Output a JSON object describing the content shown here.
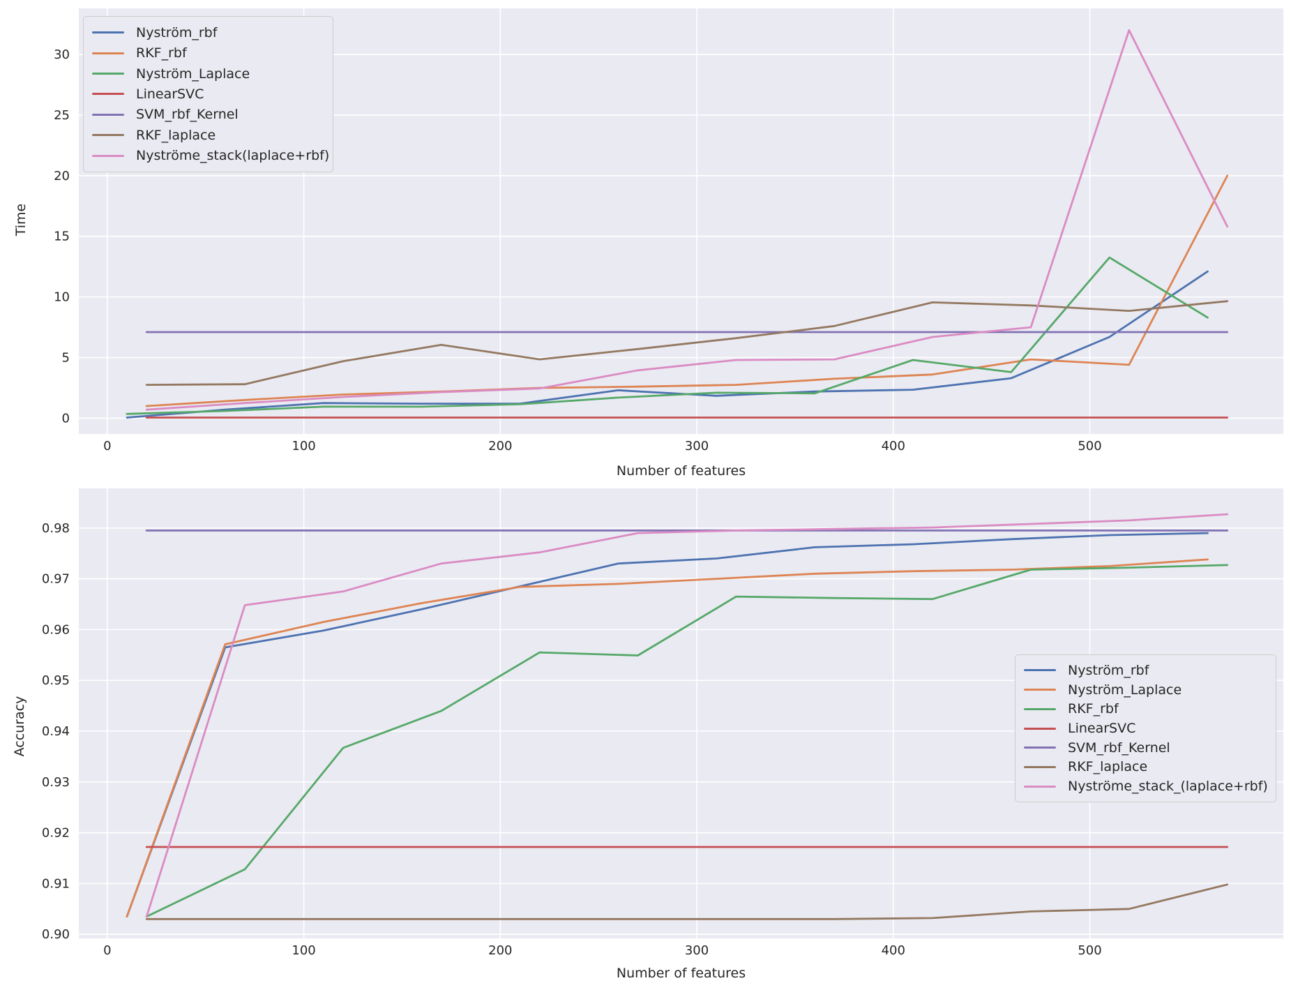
{
  "figure": {
    "background": "#ffffff",
    "axes_background": "#eaeaf2",
    "grid_color": "#ffffff",
    "text_color": "#262626"
  },
  "chart_data": [
    {
      "type": "line",
      "title": "",
      "xlabel": "Number of features",
      "ylabel": "Time",
      "xlim": [
        -14.5,
        598.5
      ],
      "ylim": [
        -1.3,
        33.8
      ],
      "grid": true,
      "legend_position": "upper left",
      "xticks": {
        "values": [
          0,
          100,
          200,
          300,
          400,
          500
        ],
        "labels": [
          "0",
          "100",
          "200",
          "300",
          "400",
          "500"
        ]
      },
      "yticks": {
        "values": [
          0,
          5,
          10,
          15,
          20,
          25,
          30
        ],
        "labels": [
          "0",
          "5",
          "10",
          "15",
          "20",
          "25",
          "30"
        ]
      },
      "series": [
        {
          "name": "Nyström_rbf",
          "color": "#4C72B0",
          "x": [
            10,
            60,
            110,
            160,
            210,
            260,
            310,
            360,
            410,
            460,
            510,
            560
          ],
          "y": [
            0.05,
            0.7,
            1.25,
            1.2,
            1.2,
            2.3,
            1.85,
            2.2,
            2.35,
            3.3,
            6.7,
            12.1
          ]
        },
        {
          "name": "RKF_rbf",
          "color": "#DD8452",
          "x": [
            20,
            70,
            120,
            170,
            220,
            270,
            320,
            370,
            420,
            470,
            520,
            570
          ],
          "y": [
            1.0,
            1.5,
            1.95,
            2.2,
            2.5,
            2.6,
            2.75,
            3.25,
            3.6,
            4.85,
            4.4,
            20.0
          ]
        },
        {
          "name": "Nyström_Laplace",
          "color": "#55A868",
          "x": [
            10,
            60,
            110,
            160,
            210,
            260,
            310,
            360,
            410,
            460,
            510,
            560
          ],
          "y": [
            0.35,
            0.6,
            0.95,
            0.95,
            1.15,
            1.7,
            2.1,
            2.05,
            4.8,
            3.8,
            13.25,
            8.3
          ]
        },
        {
          "name": "LinearSVC",
          "color": "#C44E52",
          "x": [
            20,
            70,
            120,
            170,
            220,
            270,
            320,
            370,
            420,
            470,
            520,
            570
          ],
          "y": [
            0.05,
            0.05,
            0.05,
            0.05,
            0.05,
            0.05,
            0.05,
            0.05,
            0.05,
            0.05,
            0.05,
            0.05
          ]
        },
        {
          "name": "SVM_rbf_Kernel",
          "color": "#8172B3",
          "x": [
            20,
            70,
            120,
            170,
            220,
            270,
            320,
            370,
            420,
            470,
            520,
            570
          ],
          "y": [
            7.1,
            7.1,
            7.1,
            7.1,
            7.1,
            7.1,
            7.1,
            7.1,
            7.1,
            7.1,
            7.1,
            7.1
          ]
        },
        {
          "name": "RKF_laplace",
          "color": "#937860",
          "x": [
            20,
            70,
            120,
            170,
            220,
            270,
            320,
            370,
            420,
            470,
            520,
            570
          ],
          "y": [
            2.75,
            2.8,
            4.7,
            6.05,
            4.85,
            5.7,
            6.6,
            7.6,
            9.55,
            9.3,
            8.85,
            9.65
          ]
        },
        {
          "name": "Nyströme_stack(laplace+rbf)",
          "color": "#DA8BC3",
          "x": [
            20,
            70,
            120,
            170,
            220,
            270,
            320,
            370,
            420,
            470,
            520,
            570
          ],
          "y": [
            0.7,
            1.25,
            1.75,
            2.15,
            2.45,
            3.95,
            4.8,
            4.85,
            6.7,
            7.5,
            32.0,
            15.8
          ]
        }
      ]
    },
    {
      "type": "line",
      "title": "",
      "xlabel": "Number of features",
      "ylabel": "Accuracy",
      "xlim": [
        -14.5,
        598.5
      ],
      "ylim": [
        0.8992,
        0.9878
      ],
      "grid": true,
      "legend_position": "center right",
      "xticks": {
        "values": [
          0,
          100,
          200,
          300,
          400,
          500
        ],
        "labels": [
          "0",
          "100",
          "200",
          "300",
          "400",
          "500"
        ]
      },
      "yticks": {
        "values": [
          0.9,
          0.91,
          0.92,
          0.93,
          0.94,
          0.95,
          0.96,
          0.97,
          0.98
        ],
        "labels": [
          "0.90",
          "0.91",
          "0.92",
          "0.93",
          "0.94",
          "0.95",
          "0.96",
          "0.97",
          "0.98"
        ]
      },
      "series": [
        {
          "name": "Nyström_rbf",
          "color": "#4C72B0",
          "x": [
            10,
            60,
            110,
            160,
            210,
            260,
            310,
            360,
            410,
            460,
            510,
            560
          ],
          "y": [
            0.9035,
            0.9565,
            0.9598,
            0.964,
            0.9685,
            0.973,
            0.974,
            0.9762,
            0.9768,
            0.9778,
            0.9786,
            0.979
          ]
        },
        {
          "name": "Nyström_Laplace",
          "color": "#DD8452",
          "x": [
            10,
            60,
            110,
            160,
            210,
            260,
            310,
            360,
            410,
            460,
            510,
            560
          ],
          "y": [
            0.9035,
            0.9571,
            0.9615,
            0.9652,
            0.9684,
            0.969,
            0.97,
            0.971,
            0.9715,
            0.9718,
            0.9725,
            0.9738
          ]
        },
        {
          "name": "RKF_rbf",
          "color": "#55A868",
          "x": [
            20,
            70,
            120,
            170,
            220,
            270,
            320,
            370,
            420,
            470,
            520,
            570
          ],
          "y": [
            0.9035,
            0.9128,
            0.9367,
            0.944,
            0.9555,
            0.9549,
            0.9665,
            0.9662,
            0.966,
            0.9718,
            0.9722,
            0.9727
          ]
        },
        {
          "name": "LinearSVC",
          "color": "#C44E52",
          "x": [
            20,
            70,
            120,
            170,
            220,
            270,
            320,
            370,
            420,
            470,
            520,
            570
          ],
          "y": [
            0.9172,
            0.9172,
            0.9172,
            0.9172,
            0.9172,
            0.9172,
            0.9172,
            0.9172,
            0.9172,
            0.9172,
            0.9172,
            0.9172
          ]
        },
        {
          "name": "SVM_rbf_Kernel",
          "color": "#8172B3",
          "x": [
            20,
            70,
            120,
            170,
            220,
            270,
            320,
            370,
            420,
            470,
            520,
            570
          ],
          "y": [
            0.9795,
            0.9795,
            0.9795,
            0.9795,
            0.9795,
            0.9795,
            0.9795,
            0.9795,
            0.9795,
            0.9795,
            0.9795,
            0.9795
          ]
        },
        {
          "name": "RKF_laplace",
          "color": "#937860",
          "x": [
            20,
            70,
            120,
            170,
            220,
            270,
            320,
            370,
            420,
            470,
            520,
            570
          ],
          "y": [
            0.903,
            0.903,
            0.903,
            0.903,
            0.903,
            0.903,
            0.903,
            0.903,
            0.9032,
            0.9045,
            0.905,
            0.9098
          ]
        },
        {
          "name": "Nyströme_stack_(laplace+rbf)",
          "color": "#DA8BC3",
          "x": [
            20,
            70,
            120,
            170,
            220,
            270,
            320,
            370,
            420,
            470,
            520,
            570
          ],
          "y": [
            0.9035,
            0.9648,
            0.9675,
            0.973,
            0.9752,
            0.979,
            0.9795,
            0.9798,
            0.9801,
            0.9808,
            0.9815,
            0.9827
          ]
        }
      ]
    }
  ]
}
